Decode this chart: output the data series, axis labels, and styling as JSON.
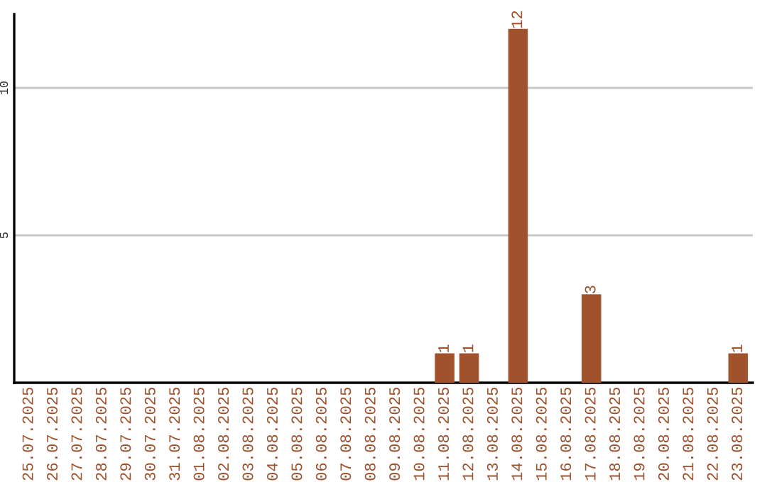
{
  "chart_data": {
    "type": "bar",
    "categories": [
      "25.07.2025",
      "26.07.2025",
      "27.07.2025",
      "28.07.2025",
      "29.07.2025",
      "30.07.2025",
      "31.07.2025",
      "01.08.2025",
      "02.08.2025",
      "03.08.2025",
      "04.08.2025",
      "05.08.2025",
      "06.08.2025",
      "07.08.2025",
      "08.08.2025",
      "09.08.2025",
      "10.08.2025",
      "11.08.2025",
      "12.08.2025",
      "13.08.2025",
      "14.08.2025",
      "15.08.2025",
      "16.08.2025",
      "17.08.2025",
      "18.08.2025",
      "19.08.2025",
      "20.08.2025",
      "21.08.2025",
      "22.08.2025",
      "23.08.2025"
    ],
    "values": [
      0,
      0,
      0,
      0,
      0,
      0,
      0,
      0,
      0,
      0,
      0,
      0,
      0,
      0,
      0,
      0,
      0,
      1,
      1,
      0,
      12,
      0,
      0,
      3,
      0,
      0,
      0,
      0,
      0,
      1
    ],
    "value_labels": [
      null,
      null,
      null,
      null,
      null,
      null,
      null,
      null,
      null,
      null,
      null,
      null,
      null,
      null,
      null,
      null,
      null,
      "1",
      "1",
      null,
      "12",
      null,
      null,
      "3",
      null,
      null,
      null,
      null,
      null,
      "1"
    ],
    "color": "#a0522d",
    "ylim": [
      0,
      12.5
    ],
    "yticks": [
      5,
      10
    ],
    "grid": "y",
    "legend": false
  }
}
